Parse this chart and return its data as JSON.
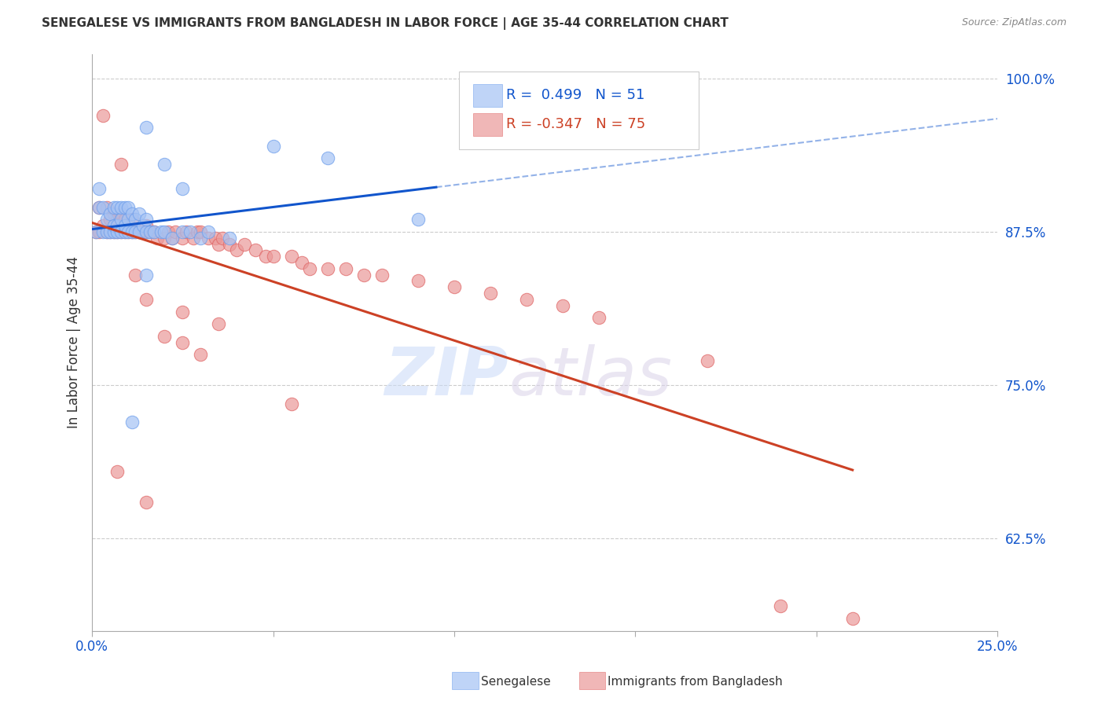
{
  "title": "SENEGALESE VS IMMIGRANTS FROM BANGLADESH IN LABOR FORCE | AGE 35-44 CORRELATION CHART",
  "source": "Source: ZipAtlas.com",
  "ylabel": "In Labor Force | Age 35-44",
  "xlim": [
    0.0,
    0.25
  ],
  "ylim": [
    0.55,
    1.02
  ],
  "yticks": [
    0.625,
    0.75,
    0.875,
    1.0
  ],
  "yticklabels": [
    "62.5%",
    "75.0%",
    "87.5%",
    "100.0%"
  ],
  "xticks": [
    0.0,
    0.05,
    0.1,
    0.15,
    0.2,
    0.25
  ],
  "xticklabels": [
    "0.0%",
    "",
    "",
    "",
    "",
    "25.0%"
  ],
  "R_blue": 0.499,
  "N_blue": 51,
  "R_pink": -0.347,
  "N_pink": 75,
  "blue_color": "#a4c2f4",
  "blue_edge_color": "#6d9eeb",
  "pink_color": "#ea9999",
  "pink_edge_color": "#e06666",
  "blue_line_color": "#1155cc",
  "pink_line_color": "#cc4125",
  "blue_scatter_x": [
    0.001,
    0.002,
    0.002,
    0.003,
    0.003,
    0.004,
    0.004,
    0.005,
    0.005,
    0.006,
    0.006,
    0.006,
    0.007,
    0.007,
    0.007,
    0.008,
    0.008,
    0.008,
    0.009,
    0.009,
    0.009,
    0.01,
    0.01,
    0.01,
    0.011,
    0.011,
    0.012,
    0.012,
    0.013,
    0.013,
    0.014,
    0.015,
    0.015,
    0.016,
    0.017,
    0.019,
    0.02,
    0.022,
    0.025,
    0.027,
    0.03,
    0.032,
    0.038,
    0.015,
    0.02,
    0.025,
    0.05,
    0.065,
    0.09,
    0.015,
    0.011
  ],
  "blue_scatter_y": [
    0.875,
    0.895,
    0.91,
    0.875,
    0.895,
    0.885,
    0.875,
    0.875,
    0.89,
    0.875,
    0.88,
    0.895,
    0.875,
    0.88,
    0.895,
    0.875,
    0.885,
    0.895,
    0.875,
    0.88,
    0.895,
    0.875,
    0.885,
    0.895,
    0.875,
    0.89,
    0.875,
    0.885,
    0.875,
    0.89,
    0.88,
    0.875,
    0.885,
    0.875,
    0.875,
    0.875,
    0.875,
    0.87,
    0.875,
    0.875,
    0.87,
    0.875,
    0.87,
    0.96,
    0.93,
    0.91,
    0.945,
    0.935,
    0.885,
    0.84,
    0.72
  ],
  "pink_scatter_x": [
    0.001,
    0.002,
    0.002,
    0.003,
    0.003,
    0.004,
    0.004,
    0.005,
    0.005,
    0.006,
    0.006,
    0.007,
    0.007,
    0.008,
    0.008,
    0.009,
    0.009,
    0.01,
    0.01,
    0.011,
    0.011,
    0.012,
    0.013,
    0.014,
    0.015,
    0.015,
    0.016,
    0.017,
    0.018,
    0.02,
    0.021,
    0.022,
    0.023,
    0.025,
    0.026,
    0.028,
    0.029,
    0.03,
    0.032,
    0.034,
    0.035,
    0.036,
    0.038,
    0.04,
    0.042,
    0.045,
    0.048,
    0.05,
    0.055,
    0.058,
    0.06,
    0.065,
    0.07,
    0.075,
    0.08,
    0.09,
    0.1,
    0.11,
    0.12,
    0.13,
    0.015,
    0.025,
    0.035,
    0.008,
    0.012,
    0.02,
    0.025,
    0.03,
    0.14,
    0.17,
    0.007,
    0.015,
    0.055,
    0.19,
    0.21
  ],
  "pink_scatter_y": [
    0.875,
    0.895,
    0.875,
    0.97,
    0.88,
    0.875,
    0.895,
    0.875,
    0.885,
    0.875,
    0.89,
    0.875,
    0.885,
    0.875,
    0.89,
    0.875,
    0.885,
    0.875,
    0.88,
    0.875,
    0.885,
    0.875,
    0.875,
    0.875,
    0.875,
    0.88,
    0.875,
    0.875,
    0.87,
    0.87,
    0.875,
    0.87,
    0.875,
    0.87,
    0.875,
    0.87,
    0.875,
    0.875,
    0.87,
    0.87,
    0.865,
    0.87,
    0.865,
    0.86,
    0.865,
    0.86,
    0.855,
    0.855,
    0.855,
    0.85,
    0.845,
    0.845,
    0.845,
    0.84,
    0.84,
    0.835,
    0.83,
    0.825,
    0.82,
    0.815,
    0.82,
    0.81,
    0.8,
    0.93,
    0.84,
    0.79,
    0.785,
    0.775,
    0.805,
    0.77,
    0.68,
    0.655,
    0.735,
    0.57,
    0.56
  ],
  "watermark_zip": "ZIP",
  "watermark_atlas": "atlas"
}
